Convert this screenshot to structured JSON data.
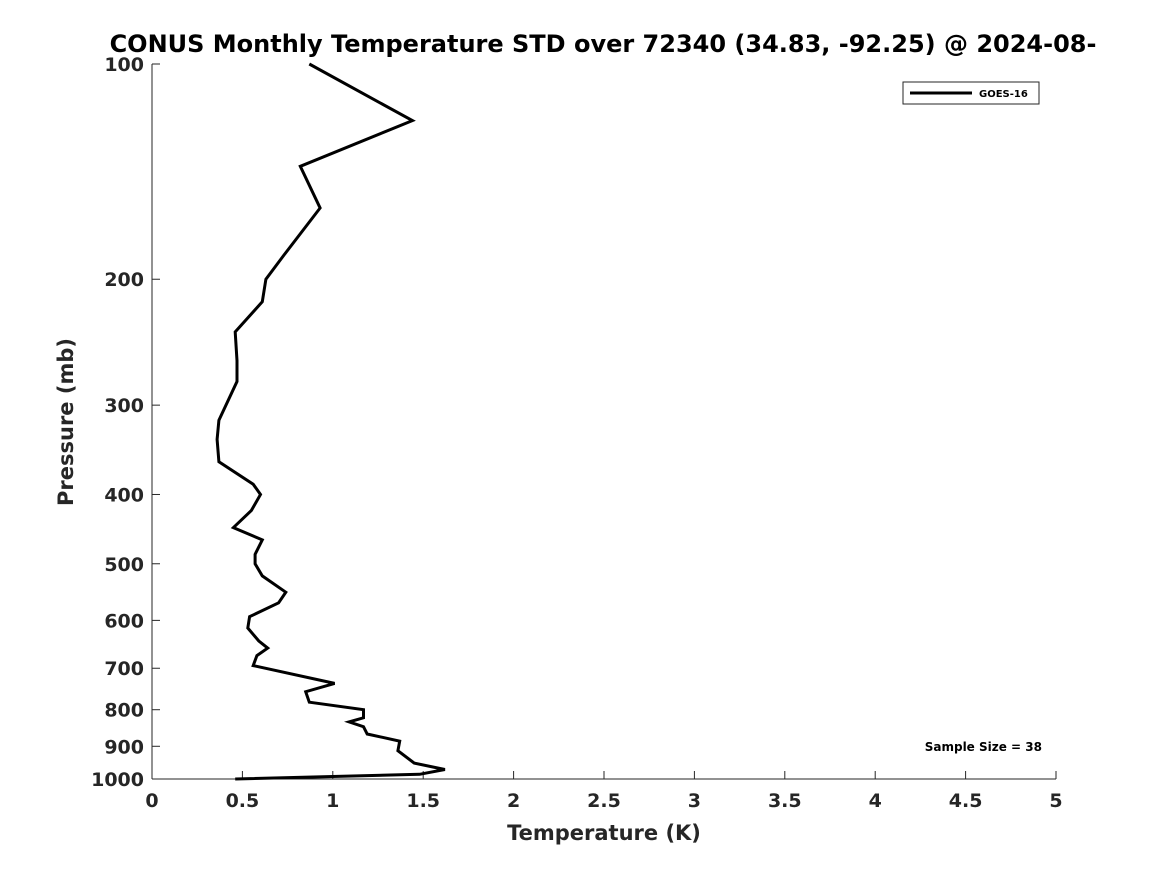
{
  "chart_data": {
    "type": "line",
    "title": "CONUS Monthly Temperature STD over 72340 (34.83, -92.25) @ 2024-08-",
    "xlabel": "Temperature (K)",
    "ylabel": "Pressure (mb)",
    "xlim": [
      0,
      5
    ],
    "ylim": [
      1000,
      100
    ],
    "yscale": "log",
    "y_reversed": true,
    "grid": false,
    "legend_position": "top-right",
    "x_ticks": [
      "0",
      "0.5",
      "1",
      "1.5",
      "2",
      "2.5",
      "3",
      "3.5",
      "4",
      "4.5",
      "5"
    ],
    "x_tick_values": [
      0,
      0.5,
      1,
      1.5,
      2,
      2.5,
      3,
      3.5,
      4,
      4.5,
      5
    ],
    "y_ticks": [
      "100",
      "200",
      "300",
      "400",
      "500",
      "600",
      "700",
      "800",
      "900",
      "1000"
    ],
    "y_tick_values": [
      100,
      200,
      300,
      400,
      500,
      600,
      700,
      800,
      900,
      1000
    ],
    "series": [
      {
        "name": "GOES-16",
        "color": "#000000",
        "points": [
          [
            0.87,
            100
          ],
          [
            1.44,
            120
          ],
          [
            0.82,
            139
          ],
          [
            0.93,
            159
          ],
          [
            0.73,
            185
          ],
          [
            0.63,
            200
          ],
          [
            0.61,
            215
          ],
          [
            0.46,
            237
          ],
          [
            0.47,
            260
          ],
          [
            0.47,
            278
          ],
          [
            0.37,
            315
          ],
          [
            0.36,
            335
          ],
          [
            0.37,
            360
          ],
          [
            0.56,
            387
          ],
          [
            0.6,
            400
          ],
          [
            0.55,
            421
          ],
          [
            0.45,
            445
          ],
          [
            0.61,
            463
          ],
          [
            0.57,
            485
          ],
          [
            0.57,
            500
          ],
          [
            0.61,
            520
          ],
          [
            0.74,
            548
          ],
          [
            0.7,
            567
          ],
          [
            0.54,
            593
          ],
          [
            0.53,
            615
          ],
          [
            0.59,
            641
          ],
          [
            0.64,
            656
          ],
          [
            0.58,
            672
          ],
          [
            0.56,
            694
          ],
          [
            1.01,
            735
          ],
          [
            0.85,
            755
          ],
          [
            0.87,
            781
          ],
          [
            1.17,
            800
          ],
          [
            1.17,
            821
          ],
          [
            1.09,
            832
          ],
          [
            1.17,
            845
          ],
          [
            1.19,
            865
          ],
          [
            1.37,
            885
          ],
          [
            1.36,
            913
          ],
          [
            1.45,
            950
          ],
          [
            1.62,
            970
          ],
          [
            1.48,
            985
          ],
          [
            0.46,
            1000
          ]
        ]
      }
    ],
    "annotation": "Sample Size = 38"
  }
}
